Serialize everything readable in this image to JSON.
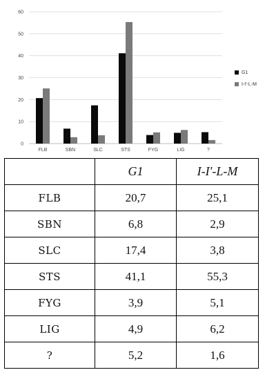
{
  "chart_data": {
    "type": "bar",
    "title": "",
    "xlabel": "",
    "ylabel": "",
    "categories": [
      "FLB",
      "SBN",
      "SLC",
      "STS",
      "FYG",
      "LIG",
      "?"
    ],
    "series": [
      {
        "name": "G1",
        "values": [
          20.7,
          6.8,
          17.4,
          41.1,
          3.9,
          4.9,
          5.2
        ],
        "color": "#0a0a0a"
      },
      {
        "name": "I-I'-L-M",
        "values": [
          25.1,
          2.9,
          3.8,
          55.3,
          5.1,
          6.2,
          1.6
        ],
        "color": "#7a7a7a"
      }
    ],
    "ylim": [
      0,
      60
    ],
    "yticks": [
      0,
      10,
      20,
      30,
      40,
      50,
      60
    ],
    "grid": true,
    "legend": "right"
  },
  "table": {
    "headers": [
      "",
      "G1",
      "I-I'-L-M"
    ],
    "rows": [
      {
        "label": "FLB",
        "g1": "20,7",
        "ilm": "25,1"
      },
      {
        "label": "SBN",
        "g1": "6,8",
        "ilm": "2,9"
      },
      {
        "label": "SLC",
        "g1": "17,4",
        "ilm": "3,8"
      },
      {
        "label": "STS",
        "g1": "41,1",
        "ilm": "55,3"
      },
      {
        "label": "FYG",
        "g1": "3,9",
        "ilm": "5,1"
      },
      {
        "label": "LIG",
        "g1": "4,9",
        "ilm": "6,2"
      },
      {
        "label": "?",
        "g1": "5,2",
        "ilm": "1,6"
      }
    ]
  }
}
